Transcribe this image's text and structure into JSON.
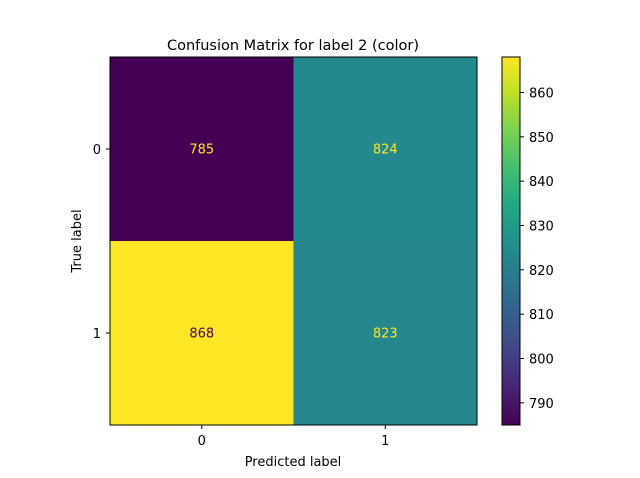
{
  "chart_data": {
    "type": "heatmap",
    "title": "Confusion Matrix for label 2 (color)",
    "xlabel": "Predicted label",
    "ylabel": "True label",
    "x_categories": [
      "0",
      "1"
    ],
    "y_categories": [
      "0",
      "1"
    ],
    "values": [
      [
        785,
        824
      ],
      [
        868,
        823
      ]
    ],
    "colormap": "viridis",
    "colorbar": {
      "range": [
        785,
        868
      ],
      "ticks": [
        790,
        800,
        810,
        820,
        830,
        840,
        850,
        860
      ]
    },
    "text_color_dark_cell": "#fde725",
    "text_color_light_cell": "#440154"
  }
}
